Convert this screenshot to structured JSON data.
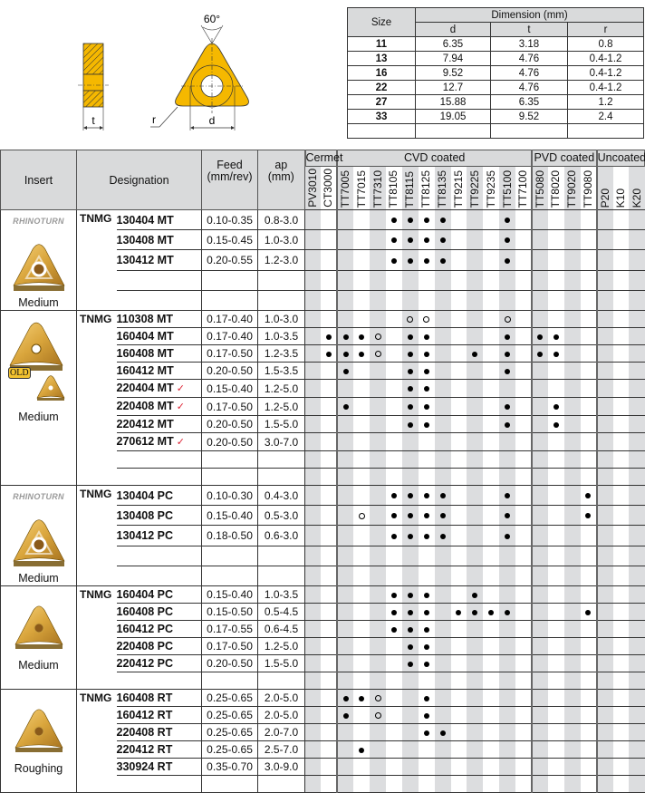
{
  "drawing": {
    "angle_label": "60°",
    "t_label": "t",
    "d_label": "d",
    "r_label": "r",
    "insert_color": "#f5b800"
  },
  "dimension_table": {
    "size_header": "Size",
    "dimension_header": "Dimension (mm)",
    "columns": [
      "d",
      "t",
      "r"
    ],
    "rows": [
      {
        "size": "11",
        "d": "6.35",
        "t": "3.18",
        "r": "0.8"
      },
      {
        "size": "13",
        "d": "7.94",
        "t": "4.76",
        "r": "0.4-1.2"
      },
      {
        "size": "16",
        "d": "9.52",
        "t": "4.76",
        "r": "0.4-1.2"
      },
      {
        "size": "22",
        "d": "12.7",
        "t": "4.76",
        "r": "0.4-1.2"
      },
      {
        "size": "27",
        "d": "15.88",
        "t": "6.35",
        "r": "1.2"
      },
      {
        "size": "33",
        "d": "19.05",
        "t": "9.52",
        "r": "2.4"
      },
      {
        "size": "",
        "d": "",
        "t": "",
        "r": ""
      }
    ]
  },
  "main_table": {
    "headers": {
      "insert": "Insert",
      "designation": "Designation",
      "feed": "Feed",
      "feed_unit": "(mm/rev)",
      "ap": "ap",
      "ap_unit": "(mm)"
    },
    "groups": [
      {
        "label": "Cermet",
        "grades": [
          "PV3010",
          "CT3000"
        ]
      },
      {
        "label": "CVD coated",
        "grades": [
          "TT7005",
          "TT7015",
          "TT7310",
          "TT8105",
          "TT8115",
          "TT8125",
          "TT8135",
          "TT9215",
          "TT9225",
          "TT9235",
          "TT5100",
          "TT7100"
        ]
      },
      {
        "label": "PVD coated",
        "grades": [
          "TT5080",
          "TT8020",
          "TT9020",
          "TT9080"
        ]
      },
      {
        "label": "Uncoated",
        "grades": [
          "P20",
          "K10",
          "K20"
        ]
      }
    ],
    "legend_marks": {
      "filled": "●",
      "open": "○",
      "check": "✓"
    },
    "sections": [
      {
        "logo": "RHINOTURN",
        "old_badge": "",
        "label": "Medium",
        "image": "rhino",
        "prefix": "TNMG",
        "empty_rows": 2,
        "rows": [
          {
            "code": "130404 MT",
            "feed": "0.10-0.35",
            "ap": "0.8-3.0",
            "check": false,
            "filled": [
              "TT8105",
              "TT8115",
              "TT8125",
              "TT8135",
              "TT5100"
            ],
            "open": []
          },
          {
            "code": "130408 MT",
            "feed": "0.15-0.45",
            "ap": "1.0-3.0",
            "check": false,
            "filled": [
              "TT8105",
              "TT8115",
              "TT8125",
              "TT8135",
              "TT5100"
            ],
            "open": []
          },
          {
            "code": "130412 MT",
            "feed": "0.20-0.55",
            "ap": "1.2-3.0",
            "check": false,
            "filled": [
              "TT8105",
              "TT8115",
              "TT8125",
              "TT8135",
              "TT5100"
            ],
            "open": []
          }
        ]
      },
      {
        "logo": "",
        "old_badge": "OLD",
        "label": "Medium",
        "image": "old",
        "prefix": "TNMG",
        "empty_rows": 2,
        "rows": [
          {
            "code": "110308 MT",
            "feed": "0.17-0.40",
            "ap": "1.0-3.0",
            "check": false,
            "filled": [],
            "open": [
              "TT8115",
              "TT8125",
              "TT5100"
            ]
          },
          {
            "code": "160404 MT",
            "feed": "0.17-0.40",
            "ap": "1.0-3.5",
            "check": false,
            "filled": [
              "CT3000",
              "TT7005",
              "TT7015",
              "TT8115",
              "TT8125",
              "TT5100",
              "TT5080",
              "TT8020"
            ],
            "open": [
              "TT7310"
            ]
          },
          {
            "code": "160408 MT",
            "feed": "0.17-0.50",
            "ap": "1.2-3.5",
            "check": false,
            "filled": [
              "CT3000",
              "TT7005",
              "TT7015",
              "TT8115",
              "TT8125",
              "TT9225",
              "TT5100",
              "TT5080",
              "TT8020"
            ],
            "open": [
              "TT7310"
            ]
          },
          {
            "code": "160412 MT",
            "feed": "0.20-0.50",
            "ap": "1.5-3.5",
            "check": false,
            "filled": [
              "TT7005",
              "TT8115",
              "TT8125",
              "TT5100"
            ],
            "open": []
          },
          {
            "code": "220404 MT",
            "feed": "0.15-0.40",
            "ap": "1.2-5.0",
            "check": true,
            "filled": [
              "TT8115",
              "TT8125"
            ],
            "open": []
          },
          {
            "code": "220408 MT",
            "feed": "0.17-0.50",
            "ap": "1.2-5.0",
            "check": true,
            "filled": [
              "TT7005",
              "TT8115",
              "TT8125",
              "TT5100",
              "TT8020"
            ],
            "open": []
          },
          {
            "code": "220412 MT",
            "feed": "0.20-0.50",
            "ap": "1.5-5.0",
            "check": false,
            "filled": [
              "TT8115",
              "TT8125",
              "TT5100",
              "TT8020"
            ],
            "open": []
          },
          {
            "code": "270612 MT",
            "feed": "0.20-0.50",
            "ap": "3.0-7.0",
            "check": true,
            "filled": [],
            "open": []
          }
        ]
      },
      {
        "logo": "RHINOTURN",
        "old_badge": "",
        "label": "Medium",
        "image": "rhino",
        "prefix": "TNMG",
        "empty_rows": 2,
        "rows": [
          {
            "code": "130404 PC",
            "feed": "0.10-0.30",
            "ap": "0.4-3.0",
            "check": false,
            "filled": [
              "TT8105",
              "TT8115",
              "TT8125",
              "TT8135",
              "TT5100",
              "TT9080"
            ],
            "open": []
          },
          {
            "code": "130408 PC",
            "feed": "0.15-0.40",
            "ap": "0.5-3.0",
            "check": false,
            "filled": [
              "TT8105",
              "TT8115",
              "TT8125",
              "TT8135",
              "TT5100",
              "TT9080"
            ],
            "open": [
              "TT7015"
            ]
          },
          {
            "code": "130412 PC",
            "feed": "0.18-0.50",
            "ap": "0.6-3.0",
            "check": false,
            "filled": [
              "TT8105",
              "TT8115",
              "TT8125",
              "TT8135",
              "TT5100"
            ],
            "open": []
          }
        ]
      },
      {
        "logo": "",
        "old_badge": "",
        "label": "Medium",
        "image": "plain",
        "prefix": "TNMG",
        "empty_rows": 1,
        "rows": [
          {
            "code": "160404 PC",
            "feed": "0.15-0.40",
            "ap": "1.0-3.5",
            "check": false,
            "filled": [
              "TT8105",
              "TT8115",
              "TT8125",
              "TT9225"
            ],
            "open": []
          },
          {
            "code": "160408 PC",
            "feed": "0.15-0.50",
            "ap": "0.5-4.5",
            "check": false,
            "filled": [
              "TT8105",
              "TT8115",
              "TT8125",
              "TT9215",
              "TT9225",
              "TT9235",
              "TT5100",
              "TT9080"
            ],
            "open": []
          },
          {
            "code": "160412 PC",
            "feed": "0.17-0.55",
            "ap": "0.6-4.5",
            "check": false,
            "filled": [
              "TT8105",
              "TT8115",
              "TT8125"
            ],
            "open": []
          },
          {
            "code": "220408 PC",
            "feed": "0.17-0.50",
            "ap": "1.2-5.0",
            "check": false,
            "filled": [
              "TT8115",
              "TT8125"
            ],
            "open": []
          },
          {
            "code": "220412 PC",
            "feed": "0.20-0.50",
            "ap": "1.5-5.0",
            "check": false,
            "filled": [
              "TT8115",
              "TT8125"
            ],
            "open": []
          }
        ]
      },
      {
        "logo": "",
        "old_badge": "",
        "label": "Roughing",
        "image": "plain",
        "prefix": "TNMG",
        "empty_rows": 1,
        "rows": [
          {
            "code": "160408 RT",
            "feed": "0.25-0.65",
            "ap": "2.0-5.0",
            "check": false,
            "filled": [
              "TT7005",
              "TT7015",
              "TT8125"
            ],
            "open": [
              "TT7310"
            ]
          },
          {
            "code": "160412 RT",
            "feed": "0.25-0.65",
            "ap": "2.0-5.0",
            "check": false,
            "filled": [
              "TT7005",
              "TT8125"
            ],
            "open": [
              "TT7310"
            ]
          },
          {
            "code": "220408 RT",
            "feed": "0.25-0.65",
            "ap": "2.0-7.0",
            "check": false,
            "filled": [
              "TT8125",
              "TT8135"
            ],
            "open": []
          },
          {
            "code": "220412 RT",
            "feed": "0.25-0.65",
            "ap": "2.5-7.0",
            "check": false,
            "filled": [
              "TT7015"
            ],
            "open": []
          },
          {
            "code": "330924 RT",
            "feed": "0.35-0.70",
            "ap": "3.0-9.0",
            "check": false,
            "filled": [],
            "open": []
          }
        ]
      }
    ]
  }
}
